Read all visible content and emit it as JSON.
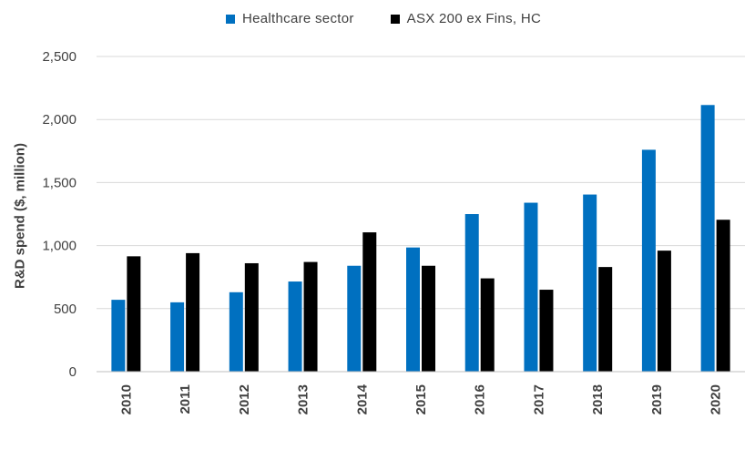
{
  "chart_data": {
    "type": "bar",
    "categories": [
      "2010",
      "2011",
      "2012",
      "2013",
      "2014",
      "2015",
      "2016",
      "2017",
      "2018",
      "2019",
      "2020"
    ],
    "series": [
      {
        "name": "Healthcare sector",
        "color": "#0070C0",
        "values": [
          570,
          550,
          630,
          715,
          840,
          985,
          1250,
          1340,
          1405,
          1760,
          2115
        ]
      },
      {
        "name": "ASX 200 ex Fins, HC",
        "color": "#000000",
        "values": [
          915,
          940,
          860,
          870,
          1105,
          840,
          740,
          650,
          830,
          960,
          1205
        ]
      }
    ],
    "title": "",
    "xlabel": "",
    "ylabel": "R&D spend ($, million)",
    "ylim": [
      0,
      2500
    ],
    "yticks": [
      "0",
      "500",
      "1,000",
      "1,500",
      "2,000",
      "2,500"
    ],
    "ytick_values": [
      0,
      500,
      1000,
      1500,
      2000,
      2500
    ],
    "grid": true,
    "legend": "top-center"
  }
}
